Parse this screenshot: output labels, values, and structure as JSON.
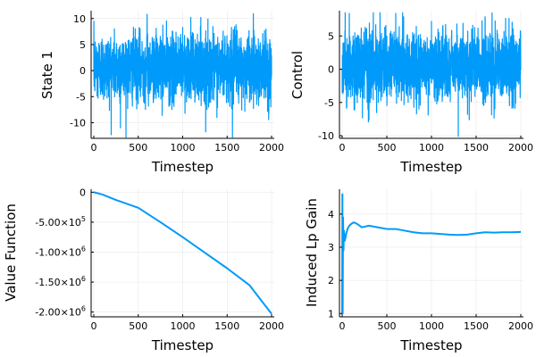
{
  "chart_data": [
    {
      "type": "line",
      "title": "",
      "xlabel": "Timestep",
      "ylabel": "State 1",
      "xlim": [
        -30,
        2030
      ],
      "ylim": [
        -13,
        11.5
      ],
      "xticks": [
        0,
        500,
        1000,
        1500,
        2000
      ],
      "xtick_labels": [
        "0",
        "500",
        "1000",
        "1500",
        "2000"
      ],
      "yticks": [
        -10,
        -5,
        0,
        5,
        10
      ],
      "ytick_labels": [
        "-10",
        "-5",
        "0",
        "5",
        "10"
      ],
      "grid": true,
      "legend": "none",
      "series": [
        {
          "color": "#009AFA",
          "kind": "noise",
          "n": 2000,
          "baseline": 0.6,
          "spread": 3.2,
          "min": -12.8,
          "max": 10.9,
          "x": [
            0,
            20,
            300,
            600,
            1000,
            1200,
            1560,
            1600,
            1900,
            2000
          ],
          "y": [
            0,
            0.5,
            -11,
            10.8,
            8.3,
            8.5,
            -12.8,
            8.8,
            7.1,
            -1
          ]
        }
      ]
    },
    {
      "type": "line",
      "title": "",
      "xlabel": "Timestep",
      "ylabel": "Control",
      "xlim": [
        -30,
        2030
      ],
      "ylim": [
        -10.4,
        8.8
      ],
      "xticks": [
        0,
        500,
        1000,
        1500,
        2000
      ],
      "xtick_labels": [
        "0",
        "500",
        "1000",
        "1500",
        "2000"
      ],
      "yticks": [
        -10,
        -5,
        0,
        5
      ],
      "ytick_labels": [
        "-10",
        "-5",
        "0",
        "5"
      ],
      "grid": true,
      "legend": "none",
      "series": [
        {
          "color": "#009AFA",
          "kind": "noise",
          "n": 2000,
          "baseline": 0.4,
          "spread": 2.6,
          "min": -10.1,
          "max": 8.5,
          "x": [
            0,
            80,
            300,
            600,
            1000,
            1300,
            1600,
            2000
          ],
          "y": [
            0,
            8.4,
            -7.6,
            8.4,
            7.2,
            -10.1,
            7.9,
            0
          ]
        }
      ]
    },
    {
      "type": "line",
      "title": "",
      "xlabel": "Timestep",
      "ylabel": "Value Function",
      "xlim": [
        -30,
        2030
      ],
      "ylim": [
        -2080000,
        50000
      ],
      "xticks": [
        0,
        500,
        1000,
        1500,
        2000
      ],
      "xtick_labels": [
        "0",
        "500",
        "1000",
        "1500",
        "2000"
      ],
      "yticks": [
        0,
        -500000,
        -1000000,
        -1500000,
        -2000000
      ],
      "ytick_labels": [
        "0",
        "-5.00×10⁵",
        "-1.00×10⁶",
        "-1.50×10⁶",
        "-2.00×10⁶"
      ],
      "grid": true,
      "legend": "none",
      "series": [
        {
          "color": "#009AFA",
          "kind": "line",
          "x": [
            0,
            100,
            250,
            500,
            750,
            1000,
            1250,
            1500,
            1750,
            2000
          ],
          "y": [
            0,
            -40000,
            -130000,
            -260000,
            -500000,
            -750000,
            -1010000,
            -1270000,
            -1550000,
            -2030000
          ]
        }
      ]
    },
    {
      "type": "line",
      "title": "",
      "xlabel": "Timestep",
      "ylabel": "Induced Lp Gain",
      "xlim": [
        -30,
        2030
      ],
      "ylim": [
        0.9,
        4.75
      ],
      "xticks": [
        0,
        500,
        1000,
        1500,
        2000
      ],
      "xtick_labels": [
        "0",
        "500",
        "1000",
        "1500",
        "2000"
      ],
      "yticks": [
        1,
        2,
        3,
        4
      ],
      "ytick_labels": [
        "1",
        "2",
        "3",
        "4"
      ],
      "grid": true,
      "legend": "none",
      "series": [
        {
          "color": "#009AFA",
          "kind": "line",
          "x": [
            0,
            3,
            6,
            10,
            15,
            20,
            30,
            45,
            60,
            80,
            100,
            130,
            170,
            220,
            300,
            400,
            500,
            600,
            700,
            800,
            900,
            1000,
            1100,
            1200,
            1300,
            1400,
            1500,
            1600,
            1700,
            1800,
            1900,
            2000
          ],
          "y": [
            1.0,
            4.6,
            1.0,
            3.9,
            2.9,
            3.5,
            3.2,
            3.4,
            3.55,
            3.65,
            3.7,
            3.75,
            3.7,
            3.6,
            3.65,
            3.6,
            3.55,
            3.55,
            3.5,
            3.45,
            3.42,
            3.42,
            3.4,
            3.38,
            3.37,
            3.38,
            3.42,
            3.45,
            3.44,
            3.45,
            3.45,
            3.46
          ]
        }
      ]
    }
  ]
}
